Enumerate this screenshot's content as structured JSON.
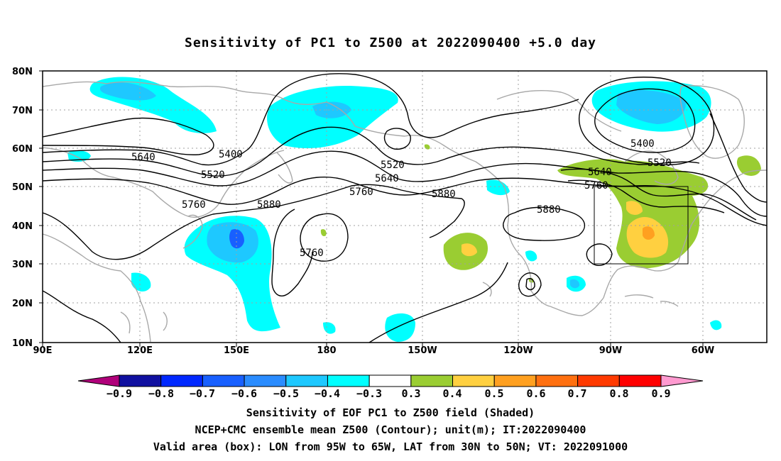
{
  "title": "Sensitivity of PC1 to Z500 at 2022090400 +5.0 day",
  "latitude_labels": [
    "80N",
    "70N",
    "60N",
    "50N",
    "40N",
    "30N",
    "20N",
    "10N"
  ],
  "longitude_labels": [
    "90E",
    "120E",
    "150E",
    "180",
    "150W",
    "120W",
    "90W",
    "60W"
  ],
  "contour_labels": [
    "5400",
    "5520",
    "5640",
    "5760",
    "5880",
    "5520",
    "5640",
    "5760",
    "5880",
    "5400",
    "5520",
    "5640",
    "5760",
    "5880",
    "5760"
  ],
  "colorbar": {
    "ticks": [
      "−0.9",
      "−0.8",
      "−0.7",
      "−0.6",
      "−0.5",
      "−0.4",
      "−0.3",
      "0.3",
      "0.4",
      "0.5",
      "0.6",
      "0.7",
      "0.8",
      "0.9"
    ],
    "colors": [
      "#1010a0",
      "#0028ff",
      "#1860ff",
      "#2a8cff",
      "#1ec8ff",
      "#00ffff",
      "#ffffff",
      "#9acd32",
      "#ffd040",
      "#ffa020",
      "#ff7010",
      "#ff3a00",
      "#ff0000"
    ],
    "low_end_color": "#b0007a",
    "high_end_color": "#ff9ad0"
  },
  "captions": {
    "line1": "Sensitivity of EOF PC1 to Z500 field (Shaded)",
    "line2": "NCEP+CMC ensemble mean Z500 (Contour); unit(m); IT:2022090400",
    "line3": "Valid area (box): LON from 95W to 65W, LAT from 30N to 50N; VT: 2022091000"
  }
}
